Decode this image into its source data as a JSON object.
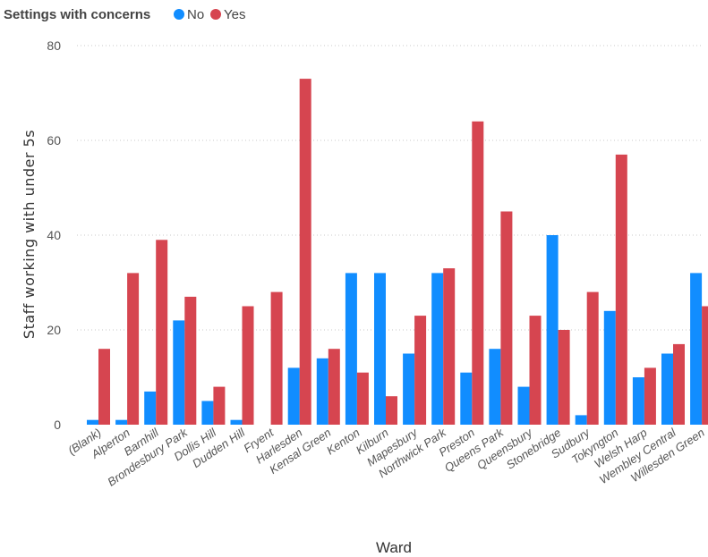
{
  "chart_data": {
    "type": "bar",
    "legend_title": "Settings with concerns",
    "legend_placement": "top-left",
    "categories": [
      "(Blank)",
      "Alperton",
      "Barnhill",
      "Brondesbury Park",
      "Dollis Hill",
      "Dudden Hill",
      "Fryent",
      "Harlesden",
      "Kensal Green",
      "Kenton",
      "Kilburn",
      "Mapesbury",
      "Northwick Park",
      "Preston",
      "Queens Park",
      "Queensbury",
      "Stonebridge",
      "Sudbury",
      "Tokyngton",
      "Welsh Harp",
      "Wembley Central",
      "Willesden Green"
    ],
    "series": [
      {
        "name": "No",
        "color": "#118DFF",
        "values": [
          1,
          1,
          7,
          22,
          5,
          1,
          0,
          12,
          14,
          32,
          32,
          15,
          32,
          11,
          16,
          8,
          40,
          2,
          24,
          10,
          15,
          32
        ]
      },
      {
        "name": "Yes",
        "color": "#D64550",
        "values": [
          16,
          32,
          39,
          27,
          8,
          25,
          28,
          73,
          16,
          11,
          6,
          23,
          33,
          64,
          45,
          23,
          20,
          28,
          57,
          12,
          17,
          25
        ]
      }
    ],
    "xlabel": "Ward",
    "ylabel": "Staff working with under 5s",
    "ylim": [
      0,
      80
    ],
    "yticks": [
      0,
      20,
      40,
      60,
      80
    ],
    "grid": true
  }
}
